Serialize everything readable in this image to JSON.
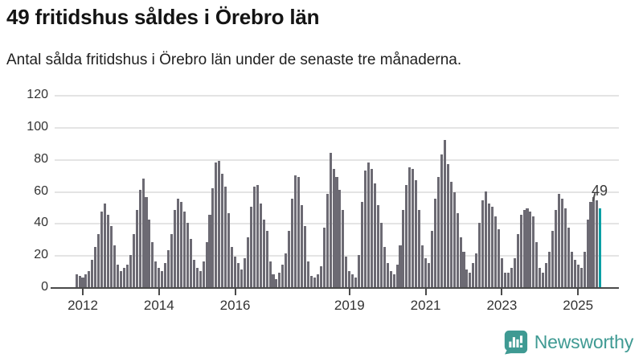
{
  "header": {
    "title": "49 fritidshus såldes i Örebro län",
    "subtitle": "Antal sålda fritidshus i Örebro län under de senaste tre månaderna."
  },
  "chart_data": {
    "type": "bar",
    "title": "49 fritidshus såldes i Örebro län",
    "subtitle": "Antal sålda fritidshus i Örebro län under de senaste tre månaderna.",
    "frequency": "monthly",
    "x_start": "2011-11",
    "x_end": "2025-08",
    "values": [
      8,
      7,
      6,
      8,
      10,
      17,
      25,
      33,
      47,
      52,
      45,
      38,
      26,
      14,
      10,
      12,
      14,
      20,
      33,
      48,
      61,
      68,
      56,
      42,
      28,
      16,
      12,
      10,
      15,
      23,
      33,
      48,
      55,
      53,
      47,
      40,
      30,
      17,
      12,
      10,
      16,
      28,
      45,
      62,
      78,
      79,
      71,
      63,
      46,
      25,
      19,
      15,
      11,
      18,
      31,
      50,
      63,
      64,
      52,
      42,
      35,
      16,
      8,
      5,
      9,
      14,
      21,
      35,
      55,
      70,
      69,
      51,
      38,
      16,
      7,
      6,
      8,
      13,
      37,
      58,
      84,
      74,
      69,
      61,
      48,
      19,
      10,
      8,
      6,
      20,
      53,
      73,
      78,
      74,
      65,
      51,
      40,
      25,
      15,
      10,
      8,
      14,
      26,
      48,
      64,
      75,
      74,
      67,
      48,
      26,
      18,
      15,
      35,
      55,
      69,
      83,
      92,
      77,
      66,
      59,
      46,
      31,
      22,
      11,
      9,
      15,
      21,
      40,
      54,
      60,
      52,
      50,
      44,
      36,
      18,
      9,
      9,
      12,
      18,
      33,
      45,
      48,
      49,
      47,
      44,
      28,
      12,
      9,
      15,
      22,
      35,
      48,
      58,
      55,
      49,
      37,
      22,
      17,
      14,
      12,
      22,
      42,
      53,
      56,
      54,
      49
    ],
    "series_name": "Antal sålda fritidshus (rullande tre månader)",
    "last_value_annotation": "49",
    "highlight_last_bar": true,
    "y_ticks": [
      0,
      20,
      40,
      60,
      80,
      100,
      120
    ],
    "ylim": [
      0,
      120
    ],
    "x_tick_years": [
      "2012",
      "2014",
      "2016",
      "2019",
      "2021",
      "2023",
      "2025"
    ],
    "grid": true,
    "legend": "none",
    "bar_color": "#6c6a73",
    "highlight_color": "#0aa0a5",
    "grid_color": "#e4e4e4",
    "axis_color": "#4a4a4a"
  },
  "footer": {
    "brand": "Newsworthy",
    "brand_color": "#3f9a93",
    "logo_icon": "newsworthy-speech-bubble-bar-chart-icon"
  }
}
